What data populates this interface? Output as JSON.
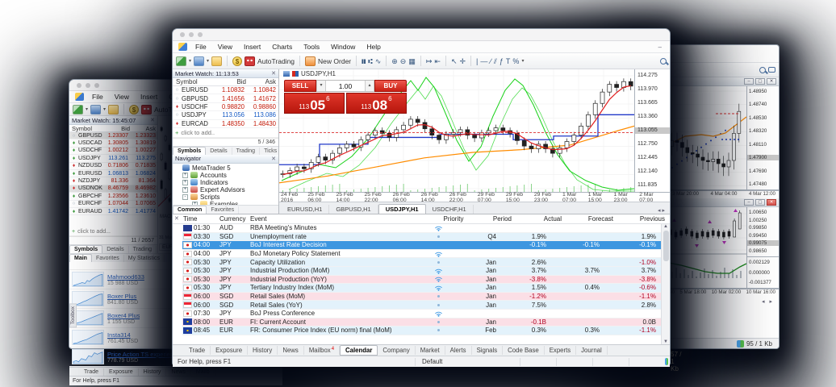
{
  "colors": {
    "accent_red": "#c81e12",
    "bid_down": "#c21807",
    "bid_up": "#1459c4",
    "selected_row": "#3d96e0",
    "row_blue": "#e3f2fb",
    "row_pink": "#fbdfe6"
  },
  "left_window": {
    "menu_items": [
      {
        "label": "File"
      },
      {
        "label": "View"
      },
      {
        "label": "Insert"
      },
      {
        "label": "Charts"
      },
      {
        "label": "Tools"
      },
      {
        "label": "Window"
      },
      {
        "label": "Help"
      }
    ],
    "toolbar": {
      "autotrading_label": "AutoTrading",
      "new_order_label": "New Order"
    },
    "market_watch": {
      "title": "Market Watch: 15:45:07",
      "columns": {
        "symbol": "Symbol",
        "bid": "Bid",
        "ask": "Ask"
      },
      "rows": [
        {
          "icon": "○",
          "icon_color": "#8fa0b0",
          "symbol": "GBPUSD",
          "bid": "1.23307",
          "ask": "1.23323",
          "val_color": "#c21807",
          "cls": "hl-row"
        },
        {
          "icon": "♦",
          "icon_color": "#3f9d3f",
          "symbol": "USDCAD",
          "bid": "1.30805",
          "ask": "1.30819",
          "val_color": "#c21807",
          "cls": ""
        },
        {
          "icon": "♦",
          "icon_color": "#3f9d3f",
          "symbol": "USDCHF",
          "bid": "1.00212",
          "ask": "1.00227",
          "val_color": "#c21807",
          "cls": ""
        },
        {
          "icon": "♦",
          "icon_color": "#3f9d3f",
          "symbol": "USDJPY",
          "bid": "113.261",
          "ask": "113.275",
          "val_color": "#1459c4",
          "cls": ""
        },
        {
          "icon": "♦",
          "icon_color": "#d03030",
          "symbol": "NZDUSD",
          "bid": "0.71806",
          "ask": "0.71835",
          "val_color": "#c21807",
          "cls": ""
        },
        {
          "icon": "♦",
          "icon_color": "#3f9d3f",
          "symbol": "EURUSD",
          "bid": "1.06813",
          "ask": "1.06824",
          "val_color": "#1459c4",
          "cls": ""
        },
        {
          "icon": "♦",
          "icon_color": "#d03030",
          "symbol": "NZDJPY",
          "bid": "81.336",
          "ask": "81.364",
          "val_color": "#c21807",
          "cls": ""
        },
        {
          "icon": "♦",
          "icon_color": "#d03030",
          "symbol": "USDNOK",
          "bid": "8.46759",
          "ask": "8.46982",
          "val_color": "#c21807",
          "cls": "hl-row"
        },
        {
          "icon": "♦",
          "icon_color": "#3f9d3f",
          "symbol": "GBPCHF",
          "bid": "1.23566",
          "ask": "1.23610",
          "val_color": "#c21807",
          "cls": ""
        },
        {
          "icon": "○",
          "icon_color": "#8fa0b0",
          "symbol": "EURCHF",
          "bid": "1.07044",
          "ask": "1.07065",
          "val_color": "#c21807",
          "cls": ""
        },
        {
          "icon": "♦",
          "icon_color": "#3f9d3f",
          "symbol": "EURAUD",
          "bid": "1.41742",
          "ask": "1.41774",
          "val_color": "#1459c4",
          "cls": ""
        }
      ],
      "add_row": "click to add...",
      "count": "11 / 2657",
      "tabs": [
        {
          "label": "Symbols",
          "cls": "pt-active"
        },
        {
          "label": "Details",
          "cls": ""
        },
        {
          "label": "Trading",
          "cls": ""
        },
        {
          "label": "Ticks",
          "cls": ""
        }
      ]
    },
    "mini_strip": {
      "indicator_label": "MACD",
      "axis_label": "31 Mar 2",
      "tab_label": "EURS"
    },
    "signals": {
      "tabs": [
        {
          "label": "Main",
          "cls": "pt-active"
        },
        {
          "label": "Favorites",
          "cls": ""
        },
        {
          "label": "My Statistics",
          "cls": ""
        }
      ],
      "header": "Signal / Equity",
      "items": [
        {
          "name": "Mahmood633",
          "equity": "15 988 USD"
        },
        {
          "name": "Boxer Plus",
          "equity": "841.80 USD"
        },
        {
          "name": "Boxer4 Plus",
          "equity": "1 155 USD"
        },
        {
          "name": "Insta314",
          "equity": "761.45 USD"
        },
        {
          "name": "Price Action TS experien",
          "equity": "778.79 USD"
        }
      ]
    },
    "bottom_tabs": [
      {
        "label": "Trade"
      },
      {
        "label": "Exposure"
      },
      {
        "label": "History"
      },
      {
        "label": "News"
      },
      {
        "label": "Mailb"
      }
    ],
    "status": {
      "help": "For Help, press F1"
    },
    "toolbox_label": "Toolbox"
  },
  "main_window": {
    "menu_items": [
      {
        "label": "File"
      },
      {
        "label": "View"
      },
      {
        "label": "Insert"
      },
      {
        "label": "Charts"
      },
      {
        "label": "Tools"
      },
      {
        "label": "Window"
      },
      {
        "label": "Help"
      }
    ],
    "toolbar": {
      "autotrading_label": "AutoTrading",
      "new_order_label": "New Order"
    },
    "market_watch": {
      "title": "Market Watch: 11:13:53",
      "columns": {
        "symbol": "Symbol",
        "bid": "Bid",
        "ask": "Ask"
      },
      "rows": [
        {
          "icon": "○",
          "icon_color": "#8fa0b0",
          "symbol": "EURUSD",
          "bid": "1.10832",
          "ask": "1.10842",
          "val_color": "#c21807",
          "cls": ""
        },
        {
          "icon": "○",
          "icon_color": "#8fa0b0",
          "symbol": "GBPUSD",
          "bid": "1.41656",
          "ask": "1.41672",
          "val_color": "#c21807",
          "cls": ""
        },
        {
          "icon": "♦",
          "icon_color": "#d03030",
          "symbol": "USDCHF",
          "bid": "0.98820",
          "ask": "0.98860",
          "val_color": "#c21807",
          "cls": ""
        },
        {
          "icon": "○",
          "icon_color": "#8fa0b0",
          "symbol": "USDJPY",
          "bid": "113.056",
          "ask": "113.086",
          "val_color": "#1459c4",
          "cls": ""
        },
        {
          "icon": "♦",
          "icon_color": "#d03030",
          "symbol": "EURCAD",
          "bid": "1.48350",
          "ask": "1.48430",
          "val_color": "#c21807",
          "cls": ""
        }
      ],
      "add_row": "click to add..",
      "count": "5 / 346",
      "tabs": [
        {
          "label": "Symbols",
          "cls": "pt-active"
        },
        {
          "label": "Details",
          "cls": ""
        },
        {
          "label": "Trading",
          "cls": ""
        },
        {
          "label": "Ticks",
          "cls": ""
        }
      ]
    },
    "navigator": {
      "title": "Navigator",
      "items": [
        {
          "label": "MetaTrader 5",
          "icon": "terminal-icon",
          "exp": "",
          "lvl": "l0"
        },
        {
          "label": "Accounts",
          "icon": "accounts-icon",
          "exp": "+",
          "lvl": "l1"
        },
        {
          "label": "Indicators",
          "icon": "indicators-icon",
          "exp": "+",
          "lvl": "l1"
        },
        {
          "label": "Expert Advisors",
          "icon": "experts-icon",
          "exp": "+",
          "lvl": "l1"
        },
        {
          "label": "Scripts",
          "icon": "scripts-icon",
          "exp": "-",
          "lvl": "l1"
        },
        {
          "label": "Examples",
          "icon": "folder-icon",
          "exp": "+",
          "lvl": "l2"
        },
        {
          "label": "93 more...",
          "icon": "more-icon",
          "exp": "",
          "lvl": "l2"
        }
      ],
      "tabs": [
        {
          "label": "Common",
          "cls": "pt-active"
        },
        {
          "label": "Favorites",
          "cls": ""
        }
      ]
    },
    "chart": {
      "symbol_label": "USDJPY,H1",
      "sell_label": "SELL",
      "buy_label": "BUY",
      "volume": "1.00",
      "sell_price_small": "113",
      "sell_price_big": "05",
      "sell_price_sup": "6",
      "buy_price_small": "113",
      "buy_price_big": "08",
      "buy_price_sup": "6",
      "current_price": "113.055",
      "price_axis": [
        {
          "v": "114.275",
          "cls": ""
        },
        {
          "v": "113.970",
          "cls": ""
        },
        {
          "v": "113.665",
          "cls": ""
        },
        {
          "v": "113.360",
          "cls": ""
        },
        {
          "v": "113.055",
          "cls": "pa-hl"
        },
        {
          "v": "112.750",
          "cls": ""
        },
        {
          "v": "112.445",
          "cls": ""
        },
        {
          "v": "112.140",
          "cls": ""
        },
        {
          "v": "111.835",
          "cls": ""
        }
      ],
      "time_axis": [
        {
          "v": "24 Feb 2016"
        },
        {
          "v": "25 Feb 06:00"
        },
        {
          "v": "25 Feb 14:00"
        },
        {
          "v": "25 Feb 22:00"
        },
        {
          "v": "26 Feb 06:00"
        },
        {
          "v": "26 Feb 14:00"
        },
        {
          "v": "26 Feb 22:00"
        },
        {
          "v": "29 Feb 07:00"
        },
        {
          "v": "29 Feb 15:00"
        },
        {
          "v": "29 Feb 23:00"
        },
        {
          "v": "1 Mar 07:00"
        },
        {
          "v": "1 Mar 15:00"
        },
        {
          "v": "1 Mar 23:00"
        },
        {
          "v": "2 Mar 07:00"
        }
      ],
      "tabs": [
        {
          "label": "EURUSD,H1",
          "cls": ""
        },
        {
          "label": "GBPUSD,H1",
          "cls": ""
        },
        {
          "label": "USDJPY,H1",
          "cls": "ct-active"
        },
        {
          "label": "USDCHF,H1",
          "cls": ""
        }
      ]
    },
    "calendar": {
      "columns": [
        {
          "label": "Time",
          "cls": "c-time"
        },
        {
          "label": "Currency",
          "cls": "c-cur"
        },
        {
          "label": "Event",
          "cls": "c-event"
        },
        {
          "label": "Priority",
          "cls": "c-prio"
        },
        {
          "label": "Period",
          "cls": "c-period"
        },
        {
          "label": "Actual",
          "cls": "c-num"
        },
        {
          "label": "Forecast",
          "cls": "c-num"
        },
        {
          "label": "Previous",
          "cls": "c-num"
        }
      ],
      "rows": [
        {
          "time": "01:30",
          "flag": "f-aud",
          "cur": "AUD",
          "event": "RBA Meeting's Minutes",
          "priority": "high",
          "period": "",
          "actual": "",
          "forecast": "",
          "previous": "",
          "row": "row-white"
        },
        {
          "time": "03:30",
          "flag": "f-sgd",
          "cur": "SGD",
          "event": "Unemployment rate",
          "priority": "low",
          "period": "Q4",
          "actual": "1.9%",
          "forecast": "",
          "previous": "1.9%",
          "row": "row-blue"
        },
        {
          "time": "04:00",
          "flag": "f-jpy",
          "cur": "JPY",
          "event": "BoJ Interest Rate Decision",
          "priority": "high",
          "period": "",
          "actual": "-0.1%",
          "forecast": "-0.1%",
          "previous": "-0.1%",
          "row": "row-sel"
        },
        {
          "time": "04:00",
          "flag": "f-jpy",
          "cur": "JPY",
          "event": "BoJ Monetary Policy Statement",
          "priority": "high",
          "period": "",
          "actual": "",
          "forecast": "",
          "previous": "",
          "row": "row-white"
        },
        {
          "time": "05:30",
          "flag": "f-jpy",
          "cur": "JPY",
          "event": "Capacity Utilization",
          "priority": "low",
          "period": "Jan",
          "actual": "2.6%",
          "forecast": "",
          "previous": "-1.0%",
          "row": "row-blue"
        },
        {
          "time": "05:30",
          "flag": "f-jpy",
          "cur": "JPY",
          "event": "Industrial Production (MoM)",
          "priority": "high",
          "period": "Jan",
          "actual": "3.7%",
          "forecast": "3.7%",
          "previous": "3.7%",
          "row": "row-blue"
        },
        {
          "time": "05:30",
          "flag": "f-jpy",
          "cur": "JPY",
          "event": "Industrial Production (YoY)",
          "priority": "high",
          "period": "Jan",
          "actual": "-3.8%",
          "forecast": "",
          "previous": "-3.8%",
          "row": "row-pink"
        },
        {
          "time": "05:30",
          "flag": "f-jpy",
          "cur": "JPY",
          "event": "Tertiary Industry Index (MoM)",
          "priority": "high",
          "period": "Jan",
          "actual": "1.5%",
          "forecast": "0.4%",
          "previous": "-0.6%",
          "row": "row-blue"
        },
        {
          "time": "06:00",
          "flag": "f-sgd",
          "cur": "SGD",
          "event": "Retail Sales (MoM)",
          "priority": "low",
          "period": "Jan",
          "actual": "-1.2%",
          "forecast": "",
          "previous": "-1.1%",
          "row": "row-pink"
        },
        {
          "time": "06:00",
          "flag": "f-sgd",
          "cur": "SGD",
          "event": "Retail Sales (YoY)",
          "priority": "low",
          "period": "Jan",
          "actual": "7.5%",
          "forecast": "",
          "previous": "2.8%",
          "row": "row-blue"
        },
        {
          "time": "07:30",
          "flag": "f-jpy",
          "cur": "JPY",
          "event": "BoJ Press Conference",
          "priority": "high",
          "period": "",
          "actual": "",
          "forecast": "",
          "previous": "",
          "row": "row-white"
        },
        {
          "time": "08:00",
          "flag": "f-eur",
          "cur": "EUR",
          "event": "FI: Current Account",
          "priority": "low",
          "period": "Jan",
          "actual": "-0.1B",
          "forecast": "",
          "previous": "0.0B",
          "row": "row-pink"
        },
        {
          "time": "08:45",
          "flag": "f-eur",
          "cur": "EUR",
          "event": "FR: Consumer Price Index (EU norm) final (MoM)",
          "priority": "low",
          "period": "Feb",
          "actual": "0.3%",
          "forecast": "0.3%",
          "previous": "-1.1%",
          "row": "row-blue"
        }
      ]
    },
    "bottom_tabs": [
      {
        "label": "Trade",
        "cls": "",
        "badge": ""
      },
      {
        "label": "Exposure",
        "cls": "",
        "badge": ""
      },
      {
        "label": "History",
        "cls": "",
        "badge": ""
      },
      {
        "label": "News",
        "cls": "",
        "badge": ""
      },
      {
        "label": "Mailbox",
        "cls": "",
        "badge": "4"
      },
      {
        "label": "Calendar",
        "cls": "bt-active",
        "badge": ""
      },
      {
        "label": "Company",
        "cls": "",
        "badge": ""
      },
      {
        "label": "Market",
        "cls": "",
        "badge": ""
      },
      {
        "label": "Alerts",
        "cls": "",
        "badge": ""
      },
      {
        "label": "Signals",
        "cls": "",
        "badge": ""
      },
      {
        "label": "Code Base",
        "cls": "",
        "badge": ""
      },
      {
        "label": "Experts",
        "cls": "",
        "badge": ""
      },
      {
        "label": "Journal",
        "cls": "",
        "badge": ""
      }
    ],
    "status": {
      "help": "For Help, press F1",
      "profile": "Default",
      "traffic": "57 / 1 Kb"
    }
  },
  "right_window": {
    "toolbar": {
      "percent_label": "%"
    },
    "chart1": {
      "price_axis": [
        {
          "v": "1.48950",
          "cls": ""
        },
        {
          "v": "1.48740",
          "cls": ""
        },
        {
          "v": "1.48530",
          "cls": ""
        },
        {
          "v": "1.48320",
          "cls": ""
        },
        {
          "v": "1.48110",
          "cls": ""
        },
        {
          "v": "1.47900",
          "cls": "pa-hl"
        },
        {
          "v": "1.47690",
          "cls": ""
        },
        {
          "v": "1.47480",
          "cls": ""
        }
      ],
      "time_axis": [
        {
          "v": "12:00"
        },
        {
          "v": "3 Mar 20:00"
        },
        {
          "v": "4 Mar 04:00"
        },
        {
          "v": "4 Mar 12:00"
        }
      ]
    },
    "chart2": {
      "price_axis": [
        {
          "v": "1.00650",
          "cls": ""
        },
        {
          "v": "1.00250",
          "cls": ""
        },
        {
          "v": "0.99850",
          "cls": ""
        },
        {
          "v": "0.99450",
          "cls": ""
        },
        {
          "v": "0.99075",
          "cls": "pa-hl"
        },
        {
          "v": "0.98650",
          "cls": ""
        }
      ],
      "indicator_axis": [
        {
          "v": "0.002129",
          "cls": ""
        },
        {
          "v": "0.000000",
          "cls": ""
        },
        {
          "v": "-0.001377",
          "cls": ""
        }
      ],
      "time_axis": [
        {
          "v": "4 Mar 19:00"
        },
        {
          "v": "5 Mar 18:00"
        },
        {
          "v": "10 Mar 02:00"
        },
        {
          "v": "10 Mar 16:00"
        }
      ]
    },
    "status": {
      "traffic": "95 / 1 Kb"
    }
  }
}
